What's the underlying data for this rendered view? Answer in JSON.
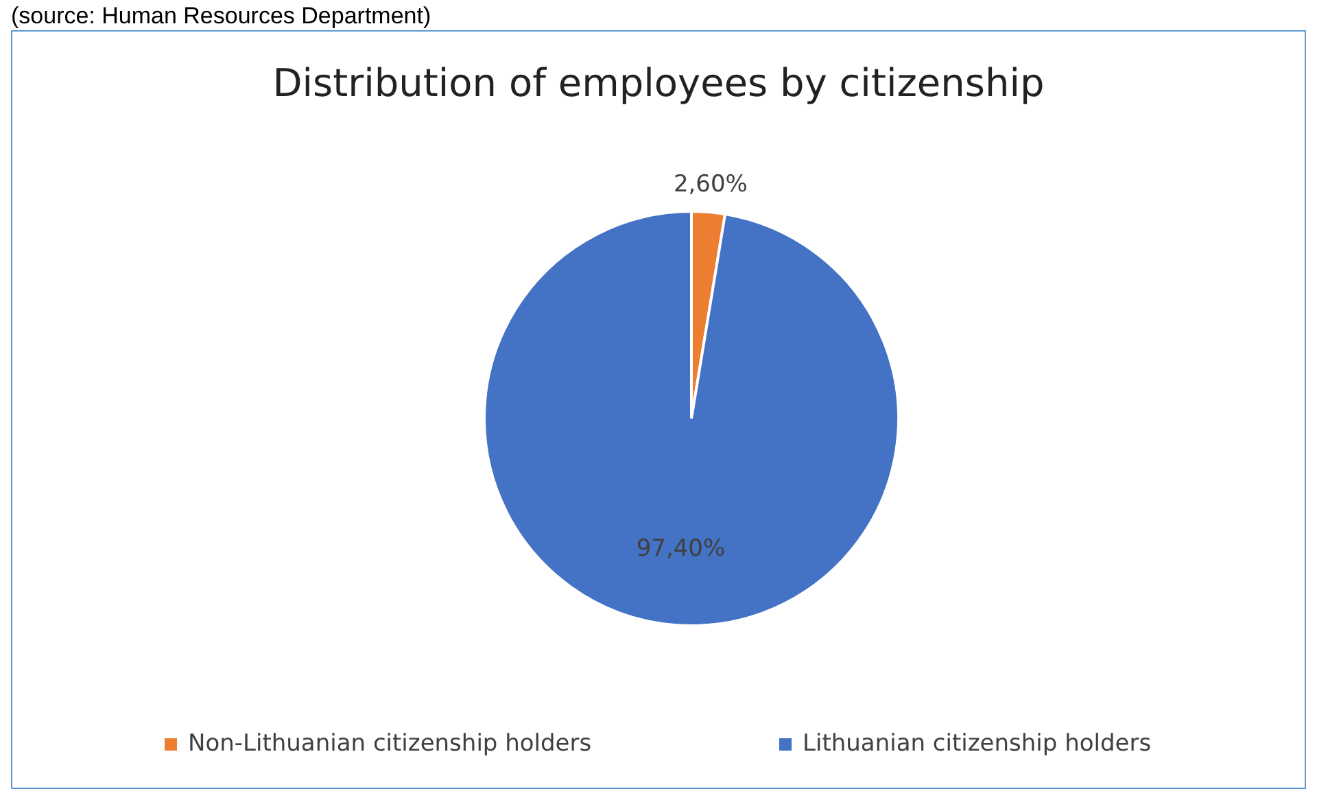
{
  "chart_data": {
    "type": "pie",
    "title": "Distribution of employees by citizenship",
    "annotations": [
      "(source: Human Resources Department)"
    ],
    "categories": [
      "Non-Lithuanian citizenship holders",
      "Lithuanian citizenship holders"
    ],
    "values": [
      2.6,
      97.4
    ],
    "colors": [
      "#ed7d31",
      "#4472c4"
    ],
    "value_labels": [
      "2,60%",
      "97,40%"
    ],
    "legend": "bottom"
  }
}
